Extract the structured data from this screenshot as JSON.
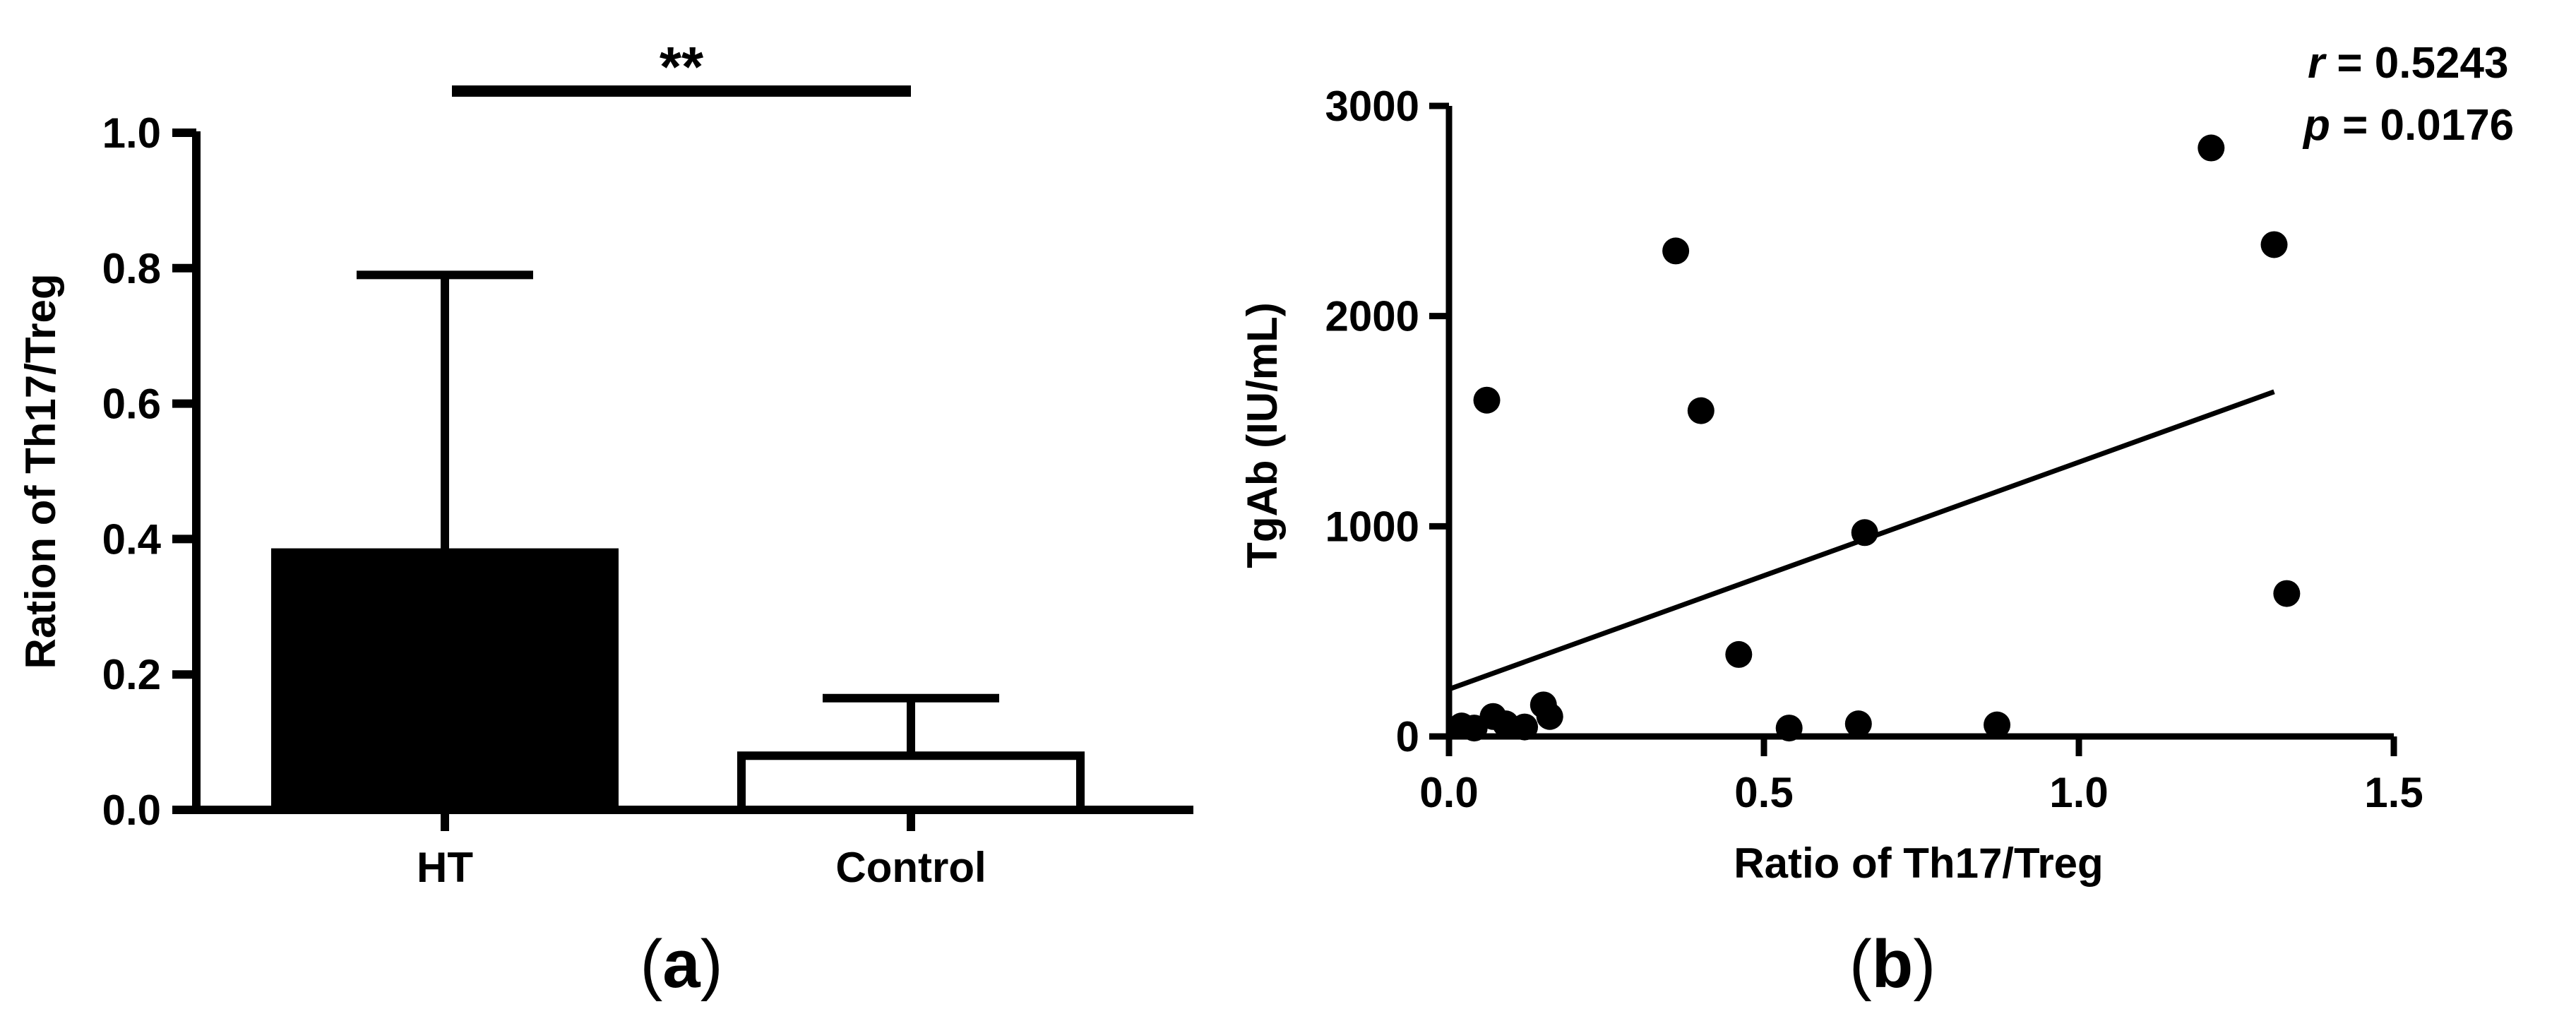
{
  "chart_data": [
    {
      "panel": "(a)",
      "panel_letter": "a",
      "type": "bar",
      "title": "",
      "xlabel": "",
      "ylabel": "Ration of Th17/Treg",
      "ylim": [
        0,
        1.0
      ],
      "yticks": [
        "0.0",
        "0.2",
        "0.4",
        "0.6",
        "0.8",
        "1.0"
      ],
      "yticks_values": [
        0,
        0.2,
        0.4,
        0.6,
        0.8,
        1.0
      ],
      "categories": [
        "HT",
        "Control"
      ],
      "values": [
        0.38,
        0.08
      ],
      "error_upper": [
        0.79,
        0.165
      ],
      "bar_fills": [
        "#000000",
        "#ffffff"
      ],
      "significance": "**",
      "grid": false
    },
    {
      "panel": "(b)",
      "panel_letter": "b",
      "type": "scatter",
      "title": "",
      "xlabel": "Ratio of Th17/Treg",
      "ylabel": "TgAb (IU/mL)",
      "xlim": [
        0,
        1.5
      ],
      "ylim": [
        0,
        3000
      ],
      "xticks": [
        "0.0",
        "0.5",
        "1.0",
        "1.5"
      ],
      "xticks_values": [
        0,
        0.5,
        1.0,
        1.5
      ],
      "yticks": [
        "0",
        "1000",
        "2000",
        "3000"
      ],
      "yticks_values": [
        0,
        1000,
        2000,
        3000
      ],
      "points": [
        {
          "x": 0.02,
          "y": 50
        },
        {
          "x": 0.04,
          "y": 40
        },
        {
          "x": 0.06,
          "y": 1600
        },
        {
          "x": 0.07,
          "y": 95
        },
        {
          "x": 0.09,
          "y": 60
        },
        {
          "x": 0.12,
          "y": 45
        },
        {
          "x": 0.15,
          "y": 150
        },
        {
          "x": 0.16,
          "y": 95
        },
        {
          "x": 0.36,
          "y": 2310
        },
        {
          "x": 0.4,
          "y": 1550
        },
        {
          "x": 0.46,
          "y": 390
        },
        {
          "x": 0.54,
          "y": 40
        },
        {
          "x": 0.65,
          "y": 60
        },
        {
          "x": 0.66,
          "y": 970
        },
        {
          "x": 0.87,
          "y": 55
        },
        {
          "x": 1.21,
          "y": 2800
        },
        {
          "x": 1.31,
          "y": 2340
        },
        {
          "x": 1.33,
          "y": 680
        }
      ],
      "regression_line": {
        "x": [
          0,
          1.31
        ],
        "y": [
          225,
          1640
        ]
      },
      "stats": {
        "r_symbol": "r",
        "r_value": " = 0.5243",
        "p_symbol": "p",
        "p_value": " = 0.0176"
      },
      "grid": false
    }
  ]
}
